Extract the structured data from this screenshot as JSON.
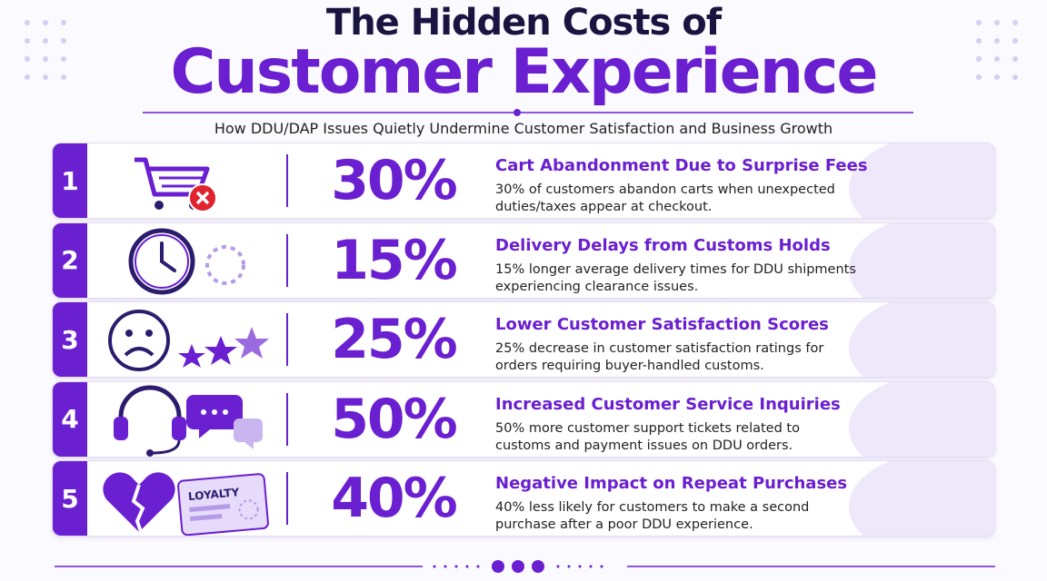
{
  "header": {
    "title_line1": "The Hidden Costs of",
    "title_line2": "Customer Experience",
    "subtitle": "How DDU/DAP Issues Quietly Undermine Customer Satisfaction and Business Growth"
  },
  "items": [
    {
      "number": "1",
      "stat": "30%",
      "title": "Cart Abandonment Due to Surprise Fees",
      "description": "30% of customers abandon carts when unexpected duties/taxes appear at checkout."
    },
    {
      "number": "2",
      "stat": "15%",
      "title": "Delivery Delays from Customs Holds",
      "description": "15% longer average delivery times for DDU shipments experiencing clearance issues."
    },
    {
      "number": "3",
      "stat": "25%",
      "title": "Lower Customer Satisfaction Scores",
      "description": "25% decrease in customer satisfaction ratings for orders requiring buyer-handled customs."
    },
    {
      "number": "4",
      "stat": "50%",
      "title": "Increased Customer Service Inquiries",
      "description": "50% more customer support tickets related to customs and payment issues on DDU orders."
    },
    {
      "number": "5",
      "stat": "40%",
      "title": "Negative Impact on Repeat Purchases",
      "description": "40% less likely for customers to make a second purchase after a poor DDU experience.",
      "icon_text": "LOYALTY"
    }
  ]
}
